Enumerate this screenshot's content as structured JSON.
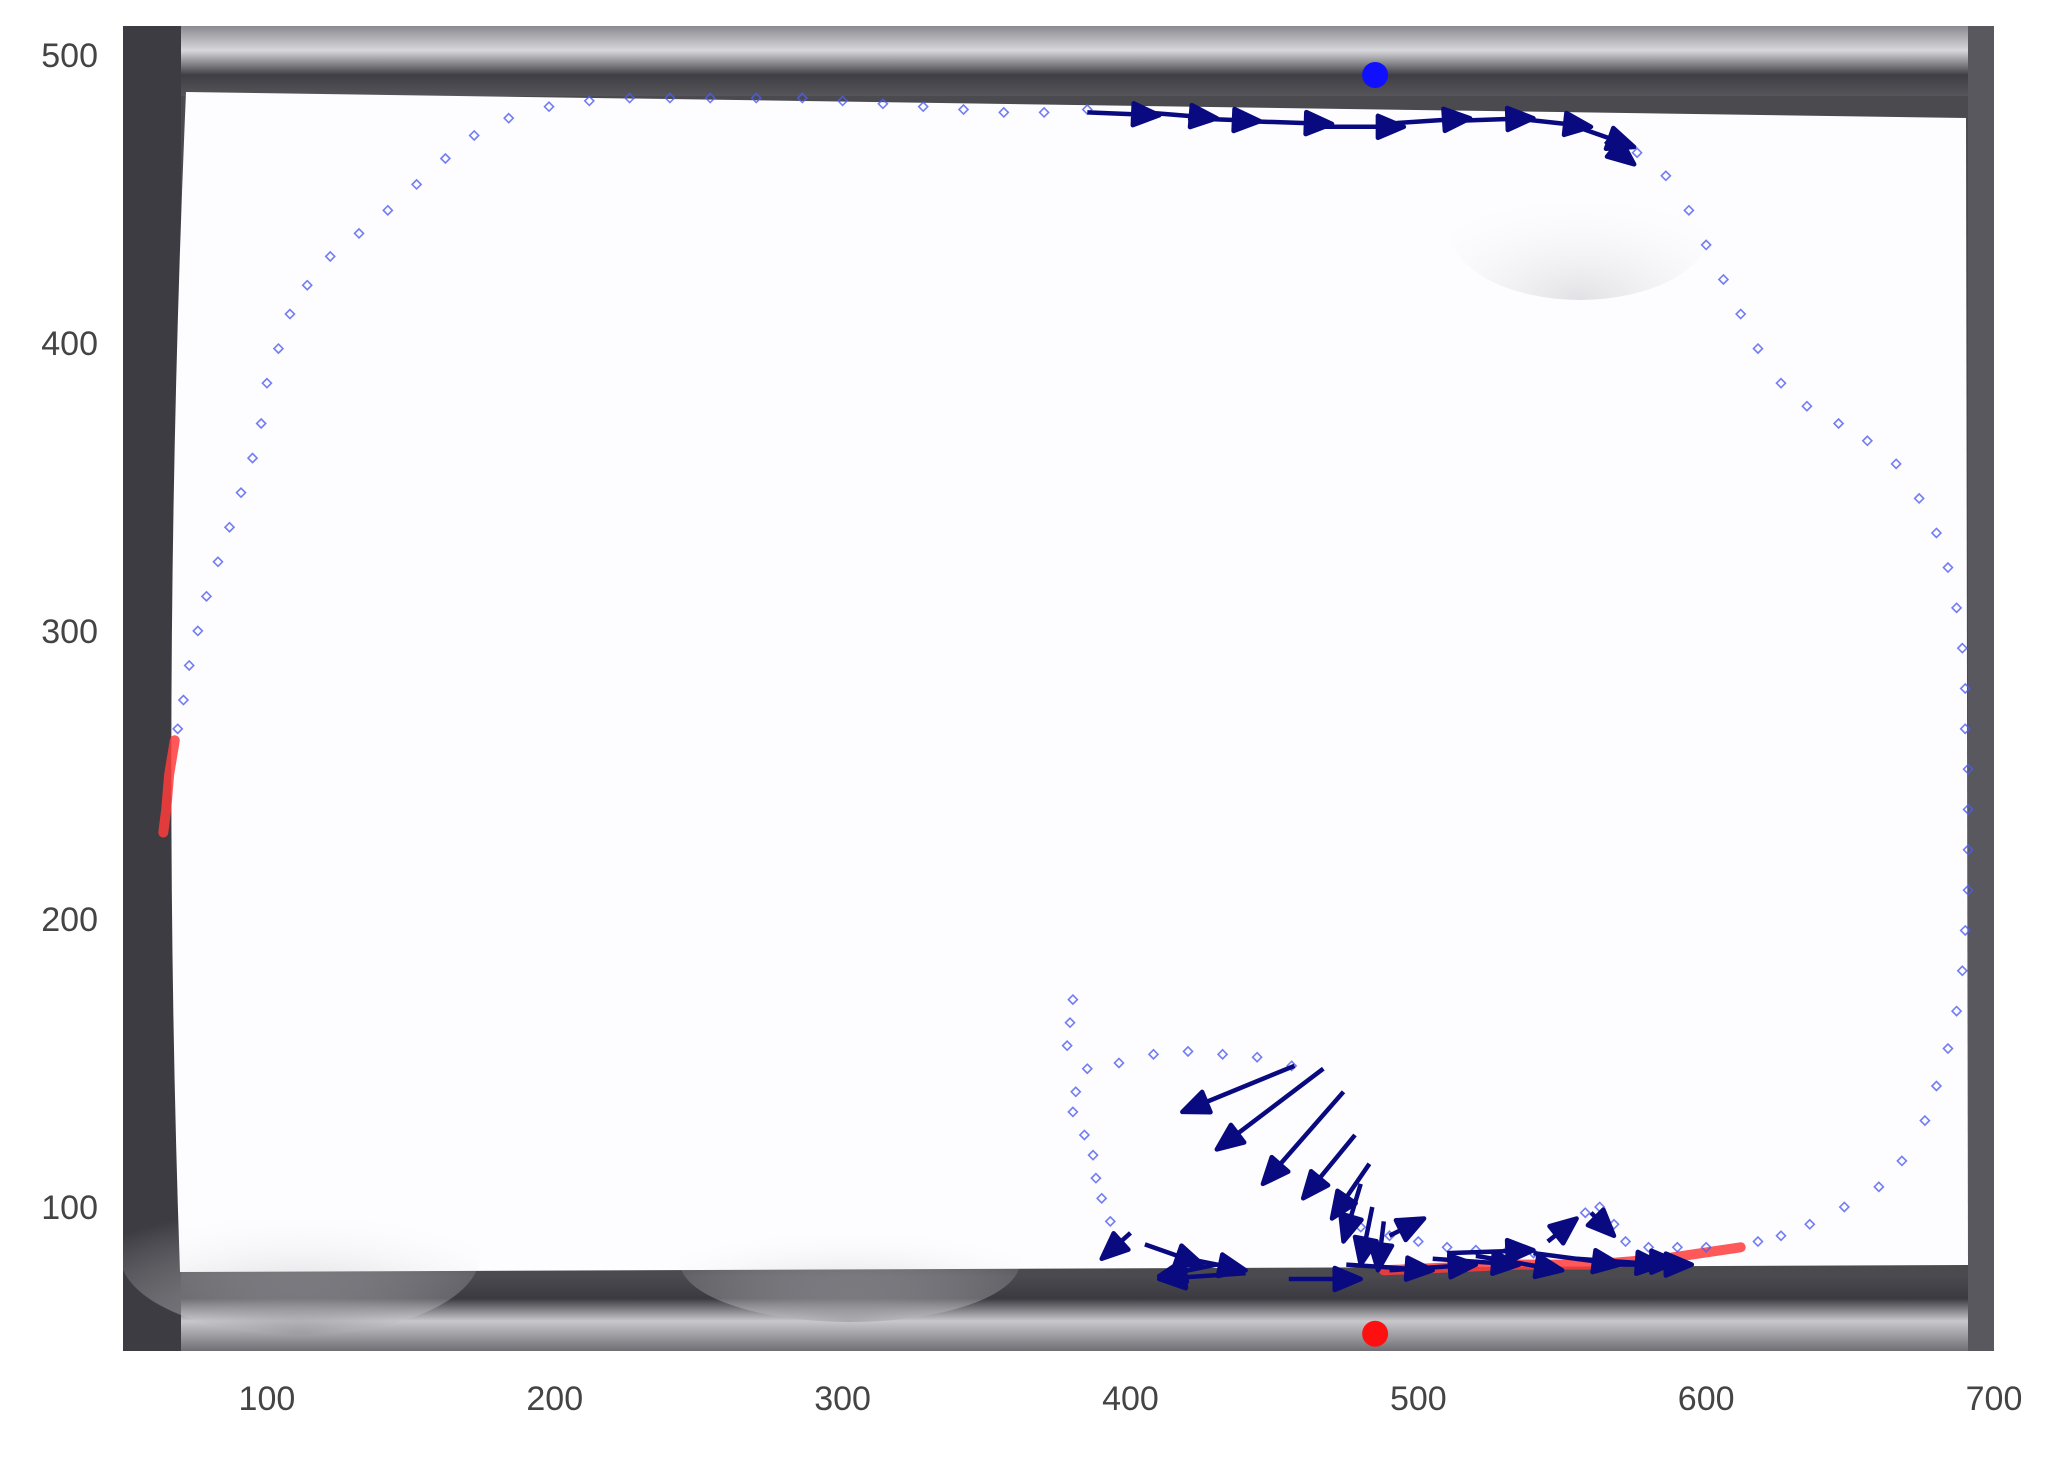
{
  "chart_data": {
    "type": "scatter",
    "title": "",
    "xlabel": "",
    "ylabel": "",
    "xlim": [
      50,
      700
    ],
    "ylim": [
      50,
      510
    ],
    "x_ticks": [
      "100",
      "200",
      "300",
      "400",
      "500",
      "600",
      "700"
    ],
    "y_ticks": [
      "100",
      "200",
      "300",
      "400",
      "500"
    ],
    "grid": false,
    "background": "grayscale arena camera frame with dark top and bottom walls",
    "colors": {
      "trajectory": "#4f5cf0",
      "arrows": "#0a0a80",
      "red_segment": "#ff3b3b",
      "blue_marker": "#1010ff",
      "red_marker": "#ff1010",
      "frame_dark": "#4a4a4f"
    },
    "markers": [
      {
        "label": "blue",
        "x": 485,
        "y": 493
      },
      {
        "label": "red",
        "x": 485,
        "y": 56
      }
    ],
    "trajectory_points": [
      [
        396,
        150
      ],
      [
        408,
        153
      ],
      [
        420,
        154
      ],
      [
        432,
        153
      ],
      [
        444,
        152
      ],
      [
        456,
        149
      ],
      [
        385,
        148
      ],
      [
        381,
        140
      ],
      [
        380,
        133
      ],
      [
        384,
        125
      ],
      [
        387,
        118
      ],
      [
        388,
        110
      ],
      [
        390,
        103
      ],
      [
        393,
        95
      ],
      [
        380,
        172
      ],
      [
        379,
        164
      ],
      [
        378,
        156
      ],
      [
        480,
        93
      ],
      [
        490,
        90
      ],
      [
        500,
        88
      ],
      [
        510,
        86
      ],
      [
        520,
        85
      ],
      [
        530,
        84
      ],
      [
        540,
        84
      ],
      [
        550,
        90
      ],
      [
        558,
        98
      ],
      [
        563,
        100
      ],
      [
        568,
        94
      ],
      [
        572,
        88
      ],
      [
        580,
        86
      ],
      [
        590,
        86
      ],
      [
        600,
        86
      ],
      [
        618,
        88
      ],
      [
        626,
        90
      ],
      [
        636,
        94
      ],
      [
        648,
        100
      ],
      [
        660,
        107
      ],
      [
        668,
        116
      ],
      [
        676,
        130
      ],
      [
        680,
        142
      ],
      [
        684,
        155
      ],
      [
        687,
        168
      ],
      [
        689,
        182
      ],
      [
        690,
        196
      ],
      [
        691,
        210
      ],
      [
        691,
        224
      ],
      [
        691,
        238
      ],
      [
        691,
        252
      ],
      [
        690,
        266
      ],
      [
        690,
        280
      ],
      [
        689,
        294
      ],
      [
        687,
        308
      ],
      [
        684,
        322
      ],
      [
        680,
        334
      ],
      [
        674,
        346
      ],
      [
        666,
        358
      ],
      [
        656,
        366
      ],
      [
        646,
        372
      ],
      [
        635,
        378
      ],
      [
        626,
        386
      ],
      [
        618,
        398
      ],
      [
        612,
        410
      ],
      [
        606,
        422
      ],
      [
        600,
        434
      ],
      [
        594,
        446
      ],
      [
        586,
        458
      ],
      [
        576,
        466
      ],
      [
        385,
        481
      ],
      [
        370,
        480
      ],
      [
        356,
        480
      ],
      [
        342,
        481
      ],
      [
        328,
        482
      ],
      [
        314,
        483
      ],
      [
        300,
        484
      ],
      [
        286,
        485
      ],
      [
        270,
        485
      ],
      [
        254,
        485
      ],
      [
        240,
        485
      ],
      [
        226,
        485
      ],
      [
        212,
        484
      ],
      [
        198,
        482
      ],
      [
        184,
        478
      ],
      [
        172,
        472
      ],
      [
        162,
        464
      ],
      [
        152,
        455
      ],
      [
        142,
        446
      ],
      [
        132,
        438
      ],
      [
        122,
        430
      ],
      [
        114,
        420
      ],
      [
        108,
        410
      ],
      [
        104,
        398
      ],
      [
        100,
        386
      ],
      [
        98,
        372
      ],
      [
        95,
        360
      ],
      [
        91,
        348
      ],
      [
        87,
        336
      ],
      [
        83,
        324
      ],
      [
        79,
        312
      ],
      [
        76,
        300
      ],
      [
        73,
        288
      ],
      [
        71,
        276
      ],
      [
        69,
        266
      ]
    ],
    "red_segments": [
      [
        [
          68,
          262
        ],
        [
          66,
          250
        ],
        [
          65,
          238
        ],
        [
          64,
          230
        ]
      ],
      [
        [
          488,
          78
        ],
        [
          510,
          79
        ],
        [
          535,
          80
        ],
        [
          560,
          80
        ],
        [
          585,
          82
        ],
        [
          612,
          86
        ]
      ]
    ],
    "arrows": [
      [
        [
          385,
          480
        ],
        [
          410,
          479
        ]
      ],
      [
        [
          405,
          480
        ],
        [
          430,
          478
        ]
      ],
      [
        [
          420,
          478
        ],
        [
          445,
          477
        ]
      ],
      [
        [
          440,
          477
        ],
        [
          470,
          476
        ]
      ],
      [
        [
          465,
          475
        ],
        [
          495,
          475
        ]
      ],
      [
        [
          488,
          476
        ],
        [
          518,
          478
        ]
      ],
      [
        [
          510,
          477
        ],
        [
          540,
          478
        ]
      ],
      [
        [
          533,
          478
        ],
        [
          560,
          475
        ]
      ],
      [
        [
          555,
          475
        ],
        [
          575,
          468
        ]
      ],
      [
        [
          565,
          470
        ],
        [
          575,
          462
        ]
      ],
      [
        [
          457,
          149
        ],
        [
          418,
          133
        ]
      ],
      [
        [
          467,
          148
        ],
        [
          430,
          120
        ]
      ],
      [
        [
          474,
          140
        ],
        [
          446,
          108
        ]
      ],
      [
        [
          478,
          125
        ],
        [
          460,
          103
        ]
      ],
      [
        [
          483,
          115
        ],
        [
          470,
          96
        ]
      ],
      [
        [
          480,
          108
        ],
        [
          474,
          88
        ]
      ],
      [
        [
          400,
          91
        ],
        [
          390,
          82
        ]
      ],
      [
        [
          405,
          87
        ],
        [
          425,
          80
        ]
      ],
      [
        [
          420,
          82
        ],
        [
          440,
          78
        ]
      ],
      [
        [
          430,
          80
        ],
        [
          410,
          76
        ]
      ],
      [
        [
          440,
          77
        ],
        [
          410,
          75
        ]
      ],
      [
        [
          455,
          75
        ],
        [
          480,
          75
        ]
      ],
      [
        [
          475,
          80
        ],
        [
          505,
          78
        ]
      ],
      [
        [
          490,
          78
        ],
        [
          520,
          80
        ]
      ],
      [
        [
          505,
          82
        ],
        [
          535,
          80
        ]
      ],
      [
        [
          520,
          83
        ],
        [
          550,
          78
        ]
      ],
      [
        [
          540,
          84
        ],
        [
          570,
          80
        ]
      ],
      [
        [
          555,
          82
        ],
        [
          585,
          80
        ]
      ],
      [
        [
          565,
          80
        ],
        [
          595,
          80
        ]
      ],
      [
        [
          580,
          81
        ],
        [
          590,
          81
        ]
      ],
      [
        [
          484,
          100
        ],
        [
          480,
          80
        ]
      ],
      [
        [
          488,
          95
        ],
        [
          486,
          78
        ]
      ],
      [
        [
          490,
          90
        ],
        [
          502,
          96
        ]
      ],
      [
        [
          510,
          84
        ],
        [
          540,
          85
        ]
      ],
      [
        [
          545,
          88
        ],
        [
          555,
          96
        ]
      ],
      [
        [
          560,
          98
        ],
        [
          568,
          90
        ]
      ]
    ]
  }
}
